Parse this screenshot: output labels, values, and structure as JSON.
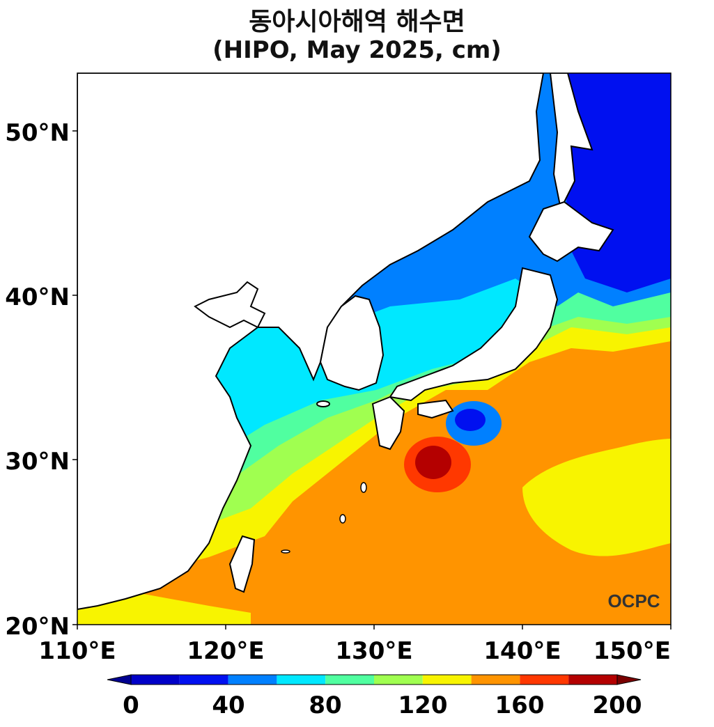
{
  "title": "동아시아해역 해수면",
  "subtitle": "(HIPO, May 2025, cm)",
  "logo": "OCPC",
  "lat_ticks": [
    "50°N",
    "40°N",
    "30°N",
    "20°N"
  ],
  "lon_ticks": [
    "110°E",
    "120°E",
    "130°E",
    "140°E",
    "150°E"
  ],
  "extent": {
    "lon": [
      110,
      150
    ],
    "lat": [
      20,
      53.5
    ]
  },
  "colorbar": {
    "ticks": [
      "0",
      "40",
      "80",
      "120",
      "160",
      "200"
    ],
    "colors": [
      "#0000c8",
      "#0010f0",
      "#0080ff",
      "#00e8ff",
      "#50ffa0",
      "#a0ff50",
      "#f8f400",
      "#ff9400",
      "#ff3800",
      "#b40000"
    ],
    "under": "#000090",
    "over": "#7a0000"
  },
  "palette": {
    "land": "#ffffff",
    "coast": "#000000"
  }
}
